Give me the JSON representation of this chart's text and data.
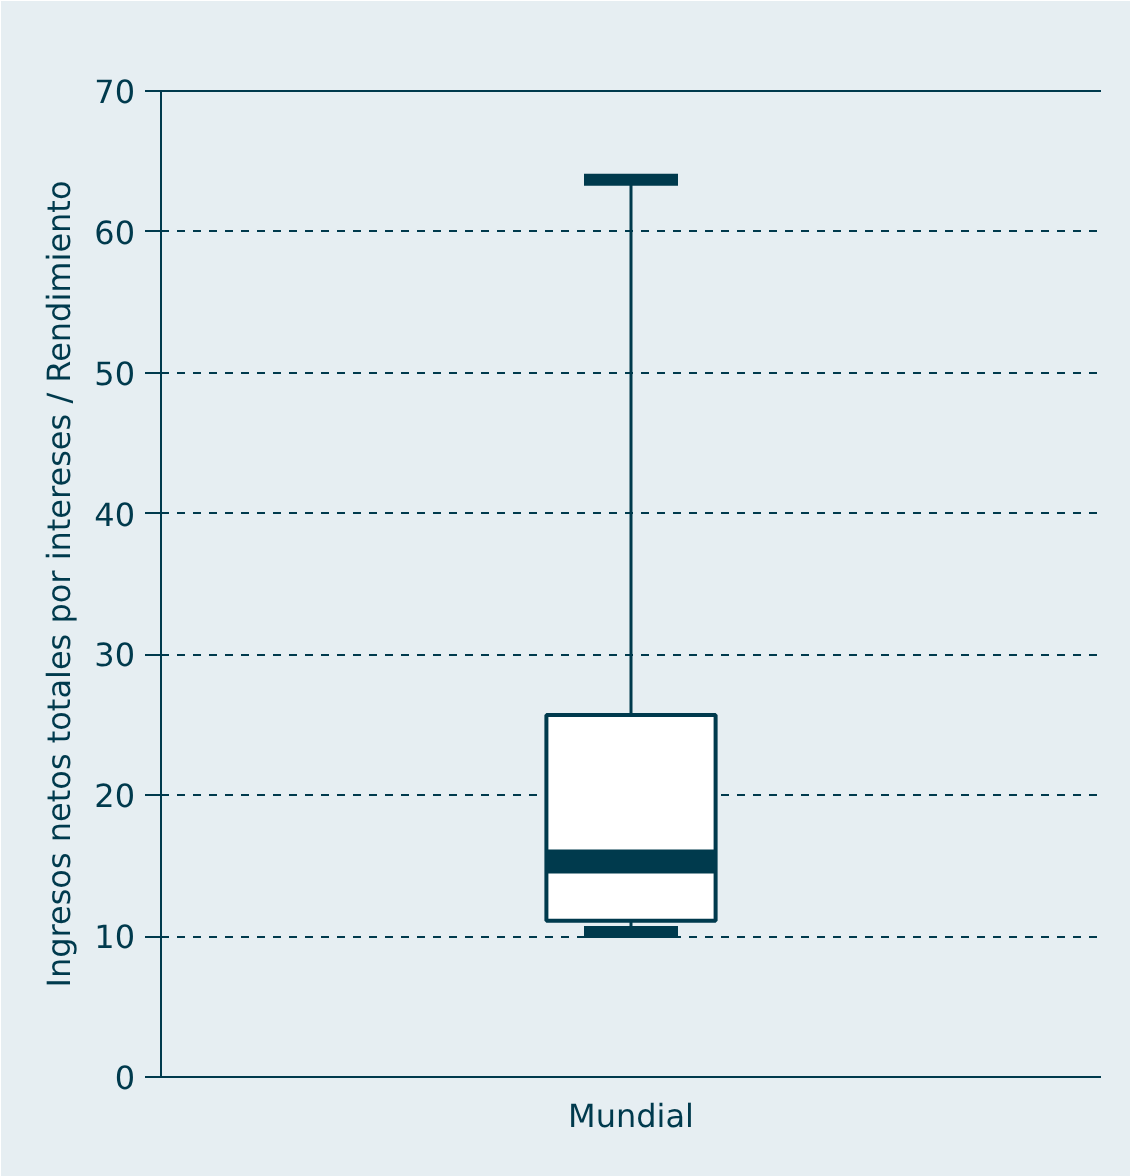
{
  "chart_data": {
    "type": "box",
    "ylabel": "Ingresos netos totales por intereses / Rendimiento",
    "categories": [
      "Mundial"
    ],
    "boxes": [
      {
        "low": 10.3,
        "q1": 11.1,
        "median": 15.3,
        "q3": 25.7,
        "high": 63.7
      }
    ],
    "color": "#003a4d",
    "ylim": [
      0,
      70
    ],
    "yticks": [
      0,
      10,
      20,
      30,
      40,
      50,
      60,
      70
    ],
    "grid": "y",
    "line_style": "dashed"
  }
}
